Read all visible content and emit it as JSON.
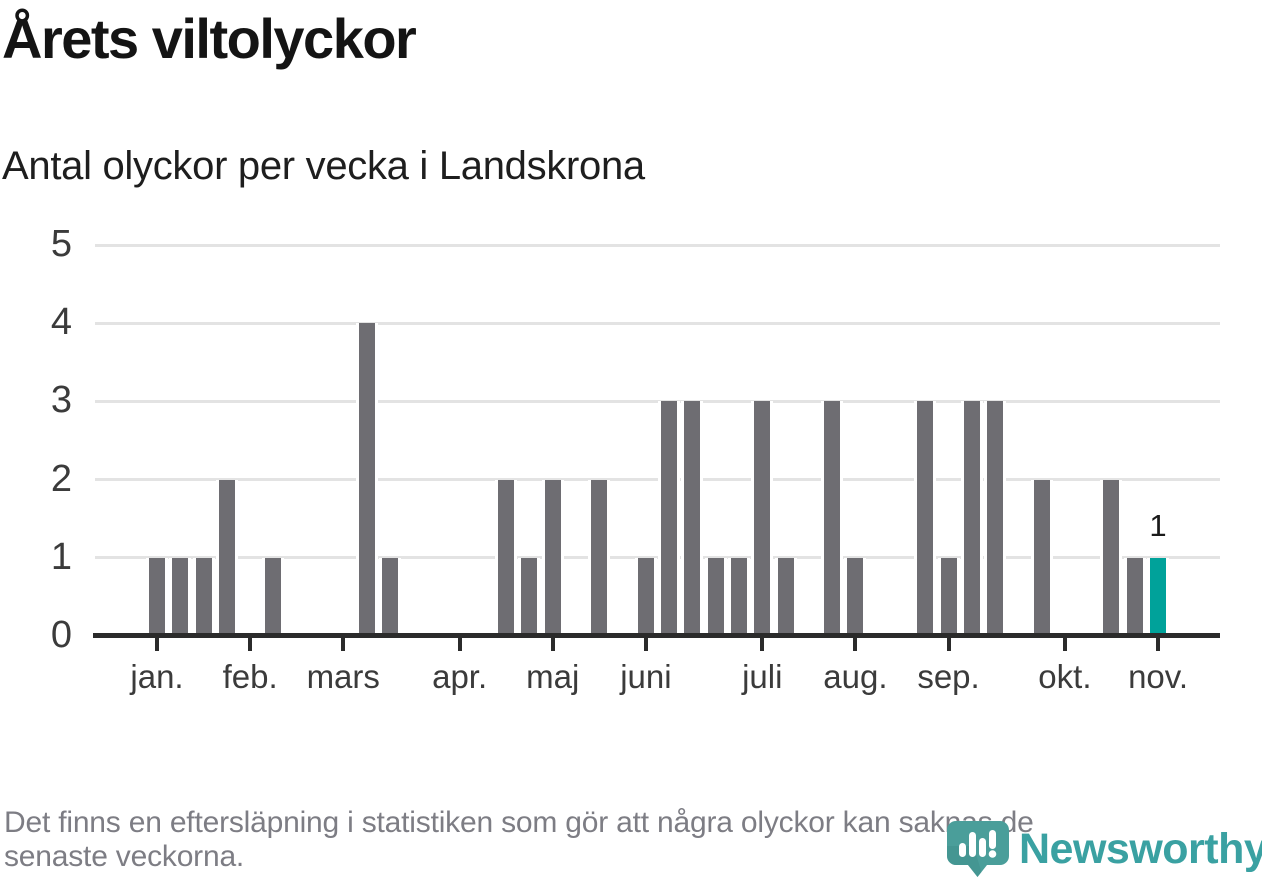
{
  "chart_data": {
    "type": "bar",
    "title": "Årets viltolyckor",
    "subtitle": "Antal olyckor per vecka i Landskrona",
    "x_unit": "vecka",
    "values": [
      1,
      1,
      1,
      2,
      0,
      1,
      0,
      0,
      0,
      4,
      1,
      0,
      0,
      0,
      0,
      2,
      1,
      2,
      0,
      2,
      0,
      1,
      3,
      3,
      1,
      1,
      3,
      1,
      0,
      3,
      1,
      0,
      0,
      3,
      1,
      3,
      3,
      0,
      2,
      0,
      0,
      2,
      1,
      1
    ],
    "month_ticks": [
      {
        "label": "jan.",
        "week": 1
      },
      {
        "label": "feb.",
        "week": 5
      },
      {
        "label": "mars",
        "week": 9
      },
      {
        "label": "apr.",
        "week": 14
      },
      {
        "label": "maj",
        "week": 18
      },
      {
        "label": "juni",
        "week": 22
      },
      {
        "label": "juli",
        "week": 27
      },
      {
        "label": "aug.",
        "week": 31
      },
      {
        "label": "sep.",
        "week": 35
      },
      {
        "label": "okt.",
        "week": 40
      },
      {
        "label": "nov.",
        "week": 44
      }
    ],
    "yticks": [
      0,
      1,
      2,
      3,
      4,
      5
    ],
    "ylim": [
      0,
      5
    ],
    "grid": true,
    "legend": "none",
    "highlight_last_bar": true,
    "annotation": {
      "week": 44,
      "label": "1"
    },
    "colors": {
      "bar": "#6e6d72",
      "highlight": "#00a29a",
      "axis": "#2b2b2b",
      "gridline": "#e3e3e3"
    }
  },
  "footer": {
    "note": "Det finns en eftersläpning i statistiken som gör att några olyckor kan saknas de senaste veckorna.",
    "logo_text": "Newsworthy"
  },
  "logo_colors": {
    "bubble": "#4a9e9a",
    "bubble_dark": "#3f8f8c",
    "marks": "#ffffff"
  }
}
